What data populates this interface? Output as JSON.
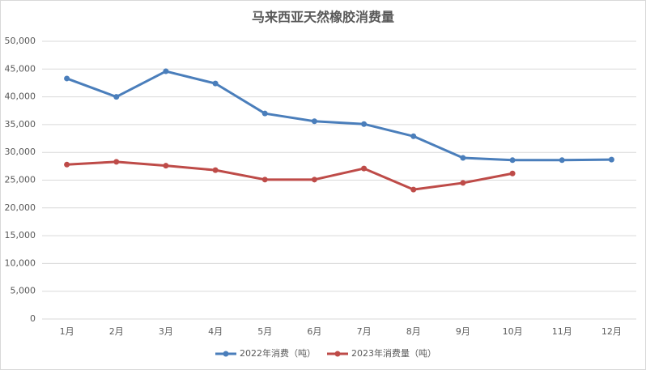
{
  "chart_data": {
    "type": "line",
    "title": "马来西亚天然橡胶消费量",
    "categories": [
      "1月",
      "2月",
      "3月",
      "4月",
      "5月",
      "6月",
      "7月",
      "8月",
      "9月",
      "10月",
      "11月",
      "12月"
    ],
    "series": [
      {
        "name": "2022年消费（吨）",
        "color": "#4a7ebb",
        "values": [
          43300,
          40000,
          44600,
          42400,
          37000,
          35600,
          35100,
          32900,
          29000,
          28600,
          28600,
          28700
        ]
      },
      {
        "name": "2023年消费量（吨）",
        "color": "#be4b48",
        "values": [
          27800,
          28300,
          27600,
          26800,
          25100,
          25100,
          27100,
          23300,
          24500,
          26200,
          null,
          null
        ]
      }
    ],
    "ylim": [
      0,
      50000
    ],
    "yticks": [
      0,
      {
        "value": 5000,
        "label": "5,000"
      },
      {
        "value": 10000,
        "label": "10,000"
      },
      {
        "value": 15000,
        "label": "15,000"
      },
      {
        "value": 20000,
        "label": "20,000"
      },
      {
        "value": 25000,
        "label": "25,000"
      },
      {
        "value": 30000,
        "label": "30,000"
      },
      {
        "value": 35000,
        "label": "35,000"
      },
      {
        "value": 40000,
        "label": "40,000"
      },
      {
        "value": 45000,
        "label": "45,000"
      },
      {
        "value": 50000,
        "label": "50,000"
      }
    ],
    "grid": true,
    "legend": "bottom"
  }
}
